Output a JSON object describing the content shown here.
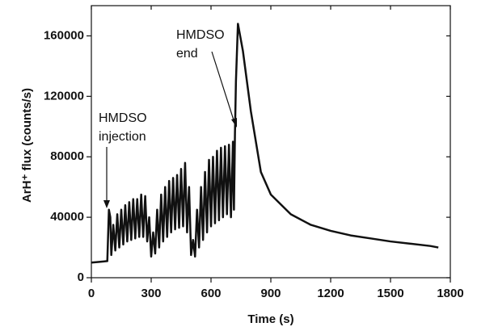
{
  "chart_data": {
    "type": "line",
    "x_label": "Time (s)",
    "y_label": "ArH⁺ flux (counts/s)",
    "x": [
      0,
      40,
      80,
      88,
      95,
      100,
      110,
      120,
      130,
      140,
      150,
      160,
      170,
      180,
      190,
      200,
      210,
      220,
      230,
      240,
      250,
      260,
      270,
      280,
      290,
      300,
      310,
      320,
      330,
      340,
      350,
      360,
      370,
      380,
      390,
      400,
      410,
      420,
      430,
      440,
      450,
      460,
      470,
      480,
      490,
      500,
      510,
      520,
      530,
      540,
      550,
      560,
      570,
      580,
      590,
      600,
      610,
      620,
      630,
      640,
      650,
      660,
      670,
      680,
      690,
      700,
      710,
      715,
      720,
      725,
      735,
      760,
      800,
      850,
      900,
      1000,
      1100,
      1200,
      1300,
      1400,
      1500,
      1600,
      1700,
      1740
    ],
    "series": [
      {
        "color": "#111111",
        "values": [
          10000,
          10500,
          11000,
          45000,
          40000,
          15000,
          35000,
          18000,
          42000,
          20000,
          45000,
          22000,
          48000,
          24000,
          50000,
          25000,
          52000,
          26000,
          52000,
          27000,
          55000,
          27000,
          54000,
          24000,
          40000,
          14000,
          30000,
          16000,
          45000,
          20000,
          55000,
          24000,
          60000,
          27000,
          64000,
          30000,
          66000,
          32000,
          68000,
          33000,
          72000,
          34000,
          76000,
          30000,
          60000,
          15000,
          25000,
          14000,
          45000,
          20000,
          60000,
          25000,
          70000,
          30000,
          78000,
          34000,
          80000,
          36000,
          84000,
          38000,
          86000,
          40000,
          87000,
          42000,
          88000,
          40000,
          90000,
          45000,
          95000,
          130000,
          168000,
          150000,
          110000,
          70000,
          55000,
          42000,
          35000,
          31000,
          28000,
          26000,
          24000,
          22500,
          21000,
          20000
        ]
      }
    ],
    "xlim": [
      0,
      1800
    ],
    "ylim": [
      0,
      180000
    ],
    "xticks": [
      0,
      300,
      600,
      900,
      1200,
      1500,
      1800
    ],
    "yticks": [
      0,
      40000,
      80000,
      120000,
      160000
    ],
    "annotations": [
      {
        "lines": [
          "HMDSO",
          "injection"
        ]
      },
      {
        "lines": [
          "HMDSO",
          "end"
        ]
      }
    ]
  }
}
